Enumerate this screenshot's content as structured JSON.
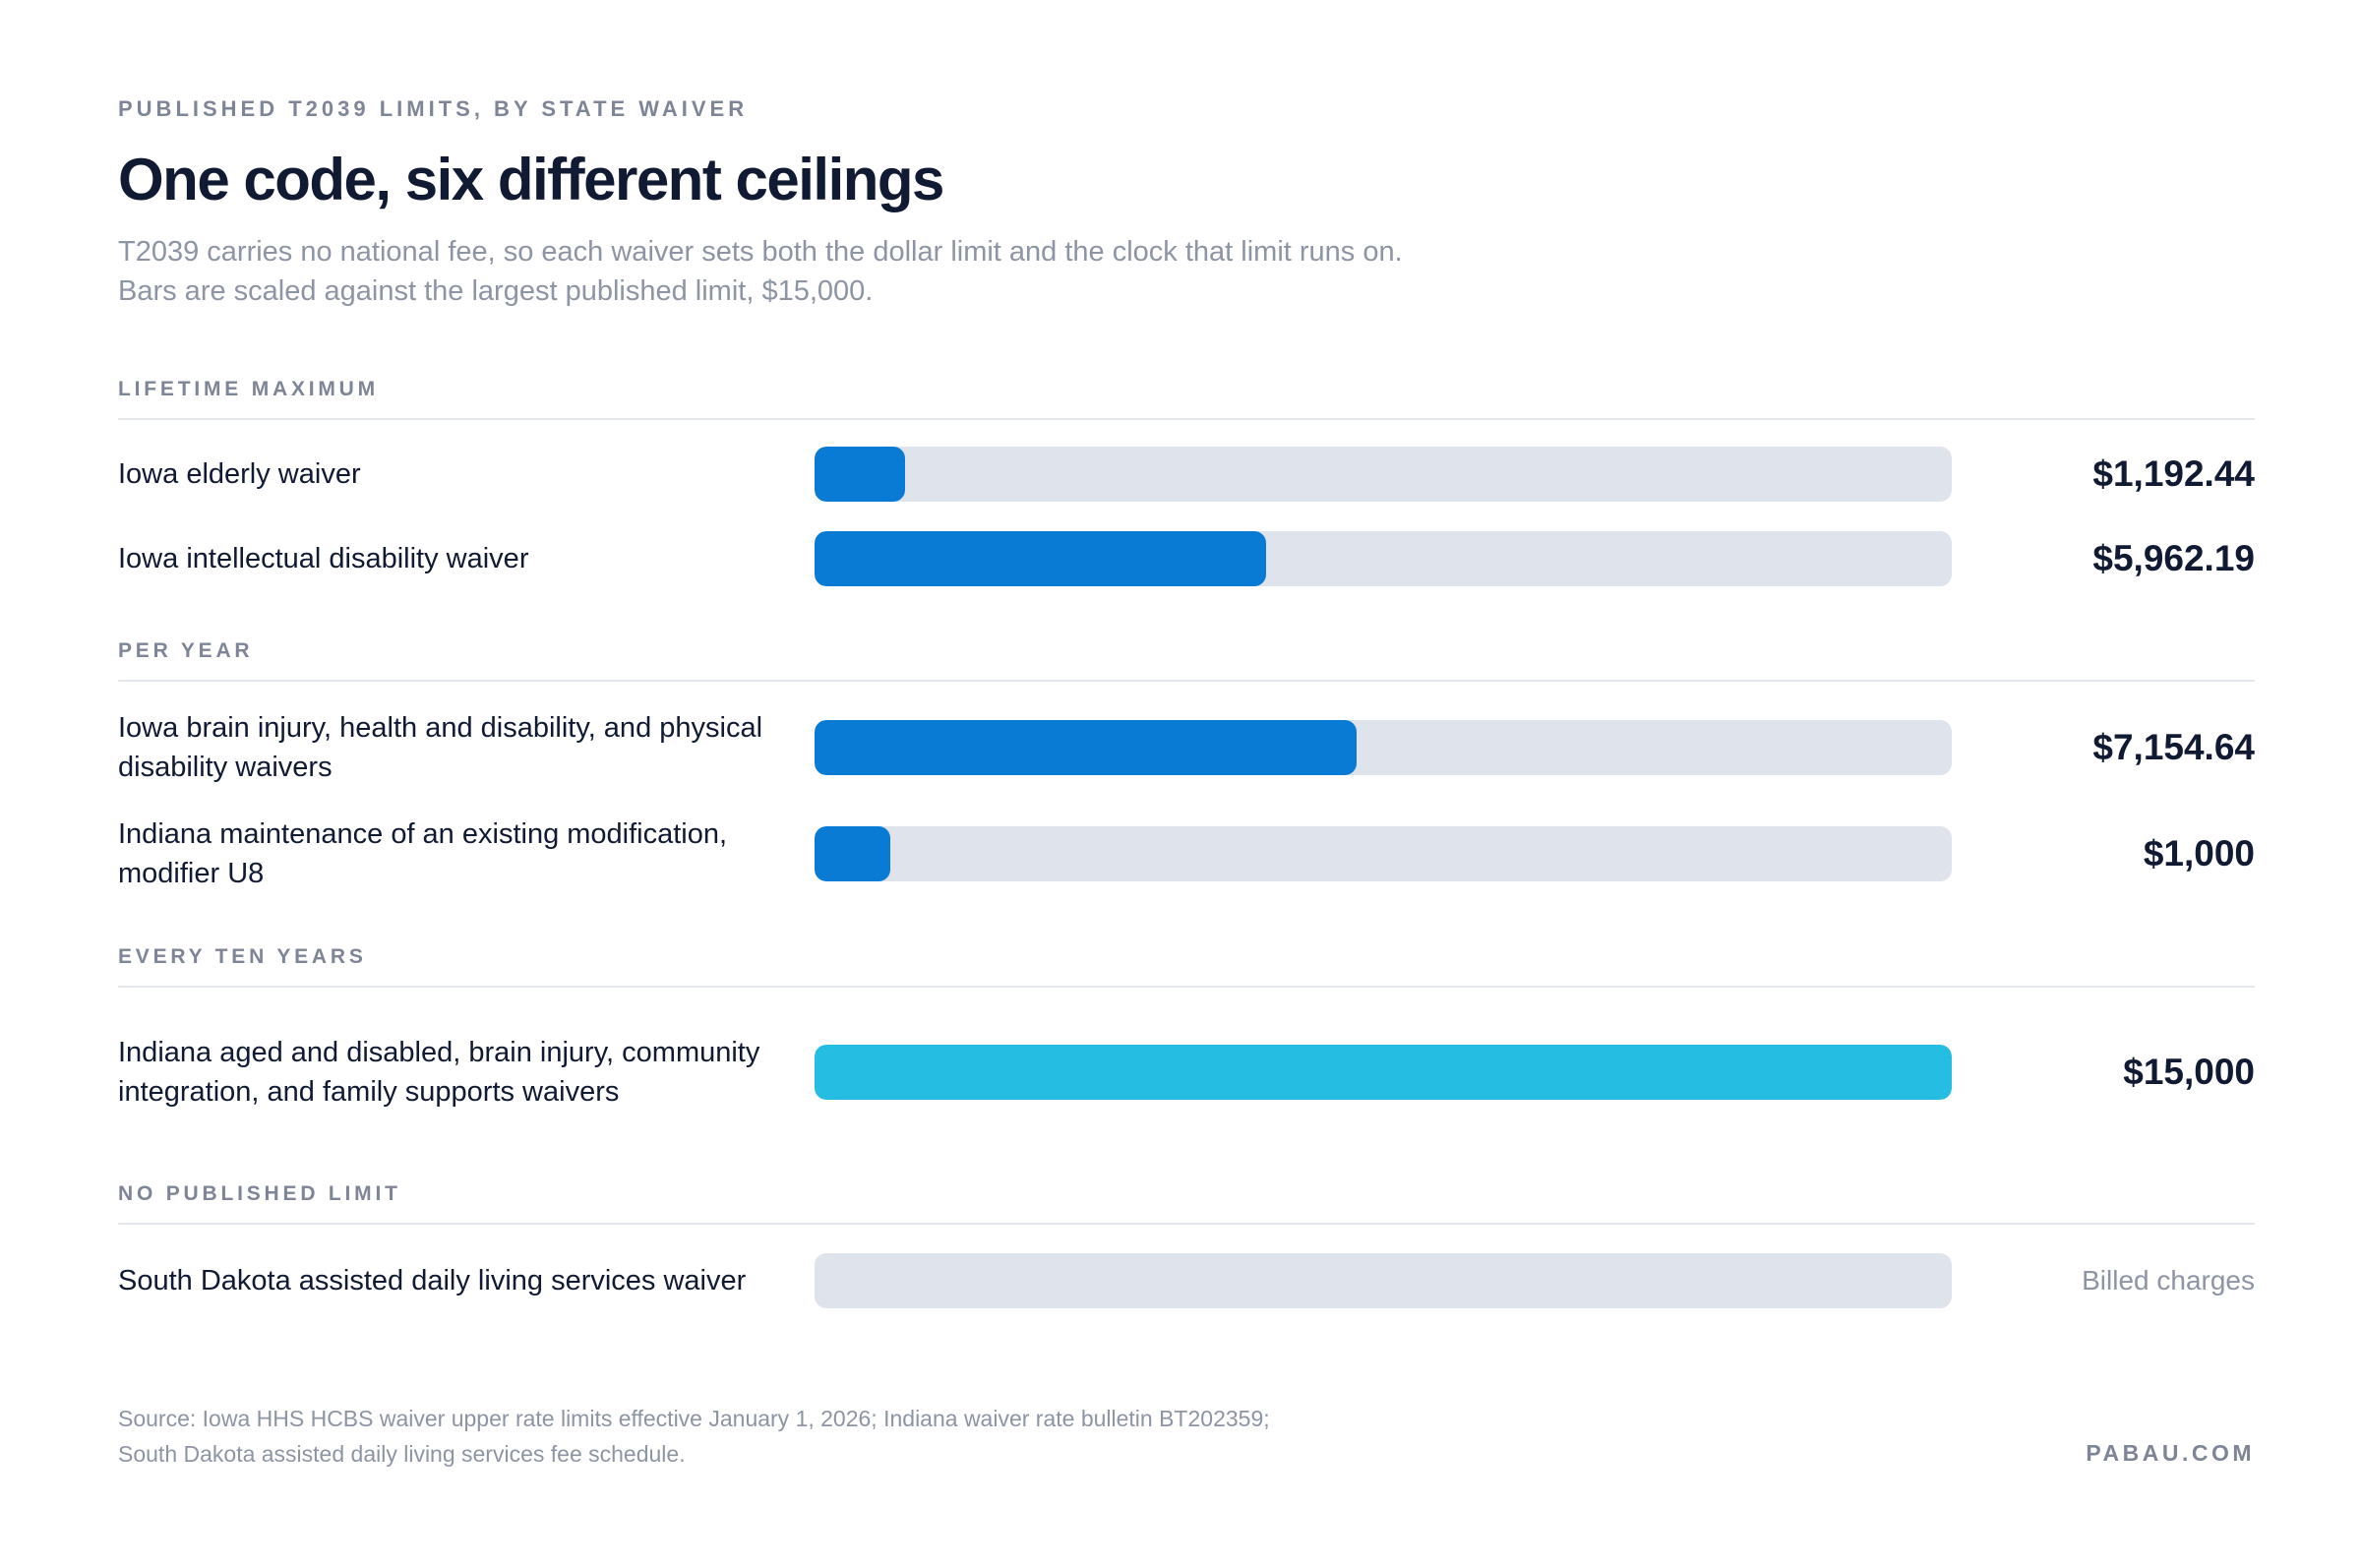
{
  "header": {
    "eyebrow": "PUBLISHED T2039 LIMITS, BY STATE WAIVER",
    "title": "One code, six different ceilings",
    "subtitle": "T2039 carries no national fee, so each waiver sets both the dollar limit and the clock that limit runs on. Bars are scaled against the largest published limit, $15,000."
  },
  "colors": {
    "bar_blue": "#0a7bd4",
    "bar_highlight": "#25bde2",
    "track": "#dfe3ec"
  },
  "chart_data": {
    "type": "bar",
    "orientation": "horizontal",
    "scale_max": 15000,
    "groups": [
      {
        "label": "LIFETIME MAXIMUM",
        "rows": [
          {
            "label": "Iowa elderly waiver",
            "value": 1192.44,
            "display": "$1,192.44",
            "color": "#0a7bd4"
          },
          {
            "label": "Iowa intellectual disability waiver",
            "value": 5962.19,
            "display": "$5,962.19",
            "color": "#0a7bd4"
          }
        ]
      },
      {
        "label": "PER YEAR",
        "rows": [
          {
            "label": "Iowa brain injury, health and disability, and physical disability waivers",
            "value": 7154.64,
            "display": "$7,154.64",
            "color": "#0a7bd4"
          },
          {
            "label": "Indiana maintenance of an existing modification, modifier U8",
            "value": 1000,
            "display": "$1,000",
            "color": "#0a7bd4"
          }
        ]
      },
      {
        "label": "EVERY TEN YEARS",
        "rows": [
          {
            "label": "Indiana aged and disabled, brain injury, community integration, and family supports waivers",
            "value": 15000,
            "display": "$15,000",
            "color": "#25bde2"
          }
        ]
      },
      {
        "label": "NO PUBLISHED LIMIT",
        "rows": [
          {
            "label": "South Dakota assisted daily living services waiver",
            "value": null,
            "display": "Billed charges",
            "color": "#0a7bd4"
          }
        ]
      }
    ]
  },
  "footer": {
    "source_line1": "Source: Iowa HHS HCBS waiver upper rate limits effective January 1, 2026; Indiana waiver rate bulletin BT202359;",
    "source_line2": "South Dakota assisted daily living services fee schedule.",
    "brand": "PABAU.COM"
  }
}
